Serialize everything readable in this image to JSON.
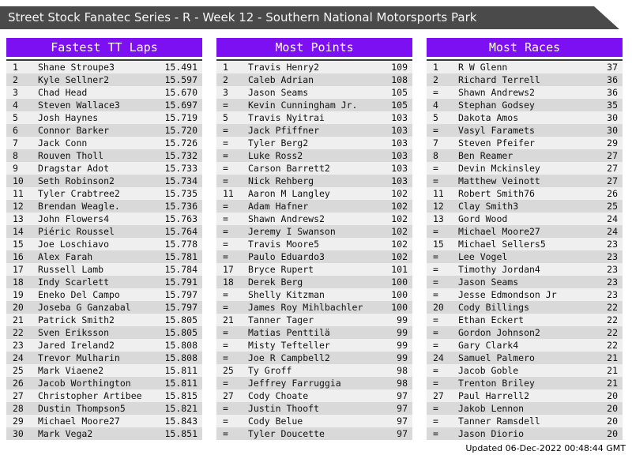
{
  "title": "Street Stock Fanatec Series - R - Week 12 - Southern National Motorsports Park",
  "updated": "Updated 06-Dec-2022 00:48:44 GMT",
  "colors": {
    "accent": "#7d10f3",
    "title_bar": "#4a4a4a",
    "row_light": "#efefef",
    "row_dark": "#d9d9d9",
    "header_text": "#ffffff"
  },
  "tables": [
    {
      "header": "Fastest TT Laps",
      "rows": [
        {
          "rank": "1",
          "name": "Shane Stroupe3",
          "value": "15.491"
        },
        {
          "rank": "2",
          "name": "Kyle Sellner2",
          "value": "15.597"
        },
        {
          "rank": "3",
          "name": "Chad Head",
          "value": "15.670"
        },
        {
          "rank": "4",
          "name": "Steven Wallace3",
          "value": "15.697"
        },
        {
          "rank": "5",
          "name": "Josh Haynes",
          "value": "15.719"
        },
        {
          "rank": "6",
          "name": "Connor Barker",
          "value": "15.720"
        },
        {
          "rank": "7",
          "name": "Jack Conn",
          "value": "15.726"
        },
        {
          "rank": "8",
          "name": "Rouven Tholl",
          "value": "15.732"
        },
        {
          "rank": "9",
          "name": "Dragstar Adot",
          "value": "15.733"
        },
        {
          "rank": "10",
          "name": "Seth Robinson2",
          "value": "15.734"
        },
        {
          "rank": "11",
          "name": "Tyler Crabtree2",
          "value": "15.735"
        },
        {
          "rank": "12",
          "name": "Brendan Weagle.",
          "value": "15.736"
        },
        {
          "rank": "13",
          "name": "John Flowers4",
          "value": "15.763"
        },
        {
          "rank": "14",
          "name": "Piéric Roussel",
          "value": "15.764"
        },
        {
          "rank": "15",
          "name": "Joe Loschiavo",
          "value": "15.778"
        },
        {
          "rank": "16",
          "name": "Alex Farah",
          "value": "15.781"
        },
        {
          "rank": "17",
          "name": "Russell Lamb",
          "value": "15.784"
        },
        {
          "rank": "18",
          "name": "Indy Scarlett",
          "value": "15.791"
        },
        {
          "rank": "19",
          "name": "Eneko Del Campo",
          "value": "15.797"
        },
        {
          "rank": "20",
          "name": "Joseba G Ganzabal",
          "value": "15.797"
        },
        {
          "rank": "21",
          "name": "Patrick Smith2",
          "value": "15.805"
        },
        {
          "rank": "22",
          "name": "Sven Eriksson",
          "value": "15.805"
        },
        {
          "rank": "23",
          "name": "Jared Ireland2",
          "value": "15.808"
        },
        {
          "rank": "24",
          "name": "Trevor Mulharin",
          "value": "15.808"
        },
        {
          "rank": "25",
          "name": "Mark Viaene2",
          "value": "15.811"
        },
        {
          "rank": "26",
          "name": "Jacob Worthington",
          "value": "15.811"
        },
        {
          "rank": "27",
          "name": "Christopher Artibee",
          "value": "15.815"
        },
        {
          "rank": "28",
          "name": "Dustin Thompson5",
          "value": "15.821"
        },
        {
          "rank": "29",
          "name": "Michael Moore27",
          "value": "15.843"
        },
        {
          "rank": "30",
          "name": "Mark Vega2",
          "value": "15.851"
        }
      ]
    },
    {
      "header": "Most Points",
      "rows": [
        {
          "rank": "1",
          "name": "Travis Henry2",
          "value": "109"
        },
        {
          "rank": "2",
          "name": "Caleb Adrian",
          "value": "108"
        },
        {
          "rank": "3",
          "name": "Jason Seams",
          "value": "105"
        },
        {
          "rank": "=",
          "name": "Kevin Cunningham Jr.",
          "value": "105"
        },
        {
          "rank": "5",
          "name": "Travis Nyitrai",
          "value": "103"
        },
        {
          "rank": "=",
          "name": "Jack Pfiffner",
          "value": "103"
        },
        {
          "rank": "=",
          "name": "Tyler Berg2",
          "value": "103"
        },
        {
          "rank": "=",
          "name": "Luke Ross2",
          "value": "103"
        },
        {
          "rank": "=",
          "name": "Carson Barrett2",
          "value": "103"
        },
        {
          "rank": "=",
          "name": "Nick Rehberg",
          "value": "103"
        },
        {
          "rank": "11",
          "name": "Aaron M Langley",
          "value": "102"
        },
        {
          "rank": "=",
          "name": "Adam Hafner",
          "value": "102"
        },
        {
          "rank": "=",
          "name": "Shawn Andrews2",
          "value": "102"
        },
        {
          "rank": "=",
          "name": "Jeremy I Swanson",
          "value": "102"
        },
        {
          "rank": "=",
          "name": "Travis Moore5",
          "value": "102"
        },
        {
          "rank": "=",
          "name": "Paulo Eduardo3",
          "value": "102"
        },
        {
          "rank": "17",
          "name": "Bryce Rupert",
          "value": "101"
        },
        {
          "rank": "18",
          "name": "Derek Berg",
          "value": "100"
        },
        {
          "rank": "=",
          "name": "Shelly Kitzman",
          "value": "100"
        },
        {
          "rank": "=",
          "name": "James Roy Mihlbachler",
          "value": "100"
        },
        {
          "rank": "21",
          "name": "Tanner Tager",
          "value": "99"
        },
        {
          "rank": "=",
          "name": "Matias Penttilä",
          "value": "99"
        },
        {
          "rank": "=",
          "name": "Misty Tefteller",
          "value": "99"
        },
        {
          "rank": "=",
          "name": "Joe R Campbell2",
          "value": "99"
        },
        {
          "rank": "25",
          "name": "Ty Groff",
          "value": "98"
        },
        {
          "rank": "=",
          "name": "Jeffrey Farruggia",
          "value": "98"
        },
        {
          "rank": "27",
          "name": "Cody Choate",
          "value": "97"
        },
        {
          "rank": "=",
          "name": "Justin Thooft",
          "value": "97"
        },
        {
          "rank": "=",
          "name": "Cody Belue",
          "value": "97"
        },
        {
          "rank": "=",
          "name": "Tyler Doucette",
          "value": "97"
        }
      ]
    },
    {
      "header": "Most Races",
      "rows": [
        {
          "rank": "1",
          "name": "R W Glenn",
          "value": "37"
        },
        {
          "rank": "2",
          "name": "Richard Terrell",
          "value": "36"
        },
        {
          "rank": "=",
          "name": "Shawn Andrews2",
          "value": "36"
        },
        {
          "rank": "4",
          "name": "Stephan Godsey",
          "value": "35"
        },
        {
          "rank": "5",
          "name": "Dakota Amos",
          "value": "30"
        },
        {
          "rank": "=",
          "name": "Vasyl Faramets",
          "value": "30"
        },
        {
          "rank": "7",
          "name": "Steven Pfeifer",
          "value": "29"
        },
        {
          "rank": "8",
          "name": "Ben Reamer",
          "value": "27"
        },
        {
          "rank": "=",
          "name": "Devin Mckinsley",
          "value": "27"
        },
        {
          "rank": "=",
          "name": "Matthew Veinott",
          "value": "27"
        },
        {
          "rank": "11",
          "name": "Robert Smith76",
          "value": "26"
        },
        {
          "rank": "12",
          "name": "Clay Smith3",
          "value": "25"
        },
        {
          "rank": "13",
          "name": "Gord Wood",
          "value": "24"
        },
        {
          "rank": "=",
          "name": "Michael Moore27",
          "value": "24"
        },
        {
          "rank": "15",
          "name": "Michael Sellers5",
          "value": "23"
        },
        {
          "rank": "=",
          "name": "Lee Vogel",
          "value": "23"
        },
        {
          "rank": "=",
          "name": "Timothy Jordan4",
          "value": "23"
        },
        {
          "rank": "=",
          "name": "Jason Seams",
          "value": "23"
        },
        {
          "rank": "=",
          "name": "Jesse Edmondson Jr",
          "value": "23"
        },
        {
          "rank": "20",
          "name": "Cody Billings",
          "value": "22"
        },
        {
          "rank": "=",
          "name": "Ethan Eckert",
          "value": "22"
        },
        {
          "rank": "=",
          "name": "Gordon Johnson2",
          "value": "22"
        },
        {
          "rank": "=",
          "name": "Gary Clark4",
          "value": "22"
        },
        {
          "rank": "24",
          "name": "Samuel Palmero",
          "value": "21"
        },
        {
          "rank": "=",
          "name": "Jacob Goble",
          "value": "21"
        },
        {
          "rank": "=",
          "name": "Trenton Briley",
          "value": "21"
        },
        {
          "rank": "27",
          "name": "Paul Harrell2",
          "value": "20"
        },
        {
          "rank": "=",
          "name": "Jakob Lennon",
          "value": "20"
        },
        {
          "rank": "=",
          "name": "Tanner Ramsdell",
          "value": "20"
        },
        {
          "rank": "=",
          "name": "Jason Diorio",
          "value": "20"
        }
      ]
    }
  ]
}
